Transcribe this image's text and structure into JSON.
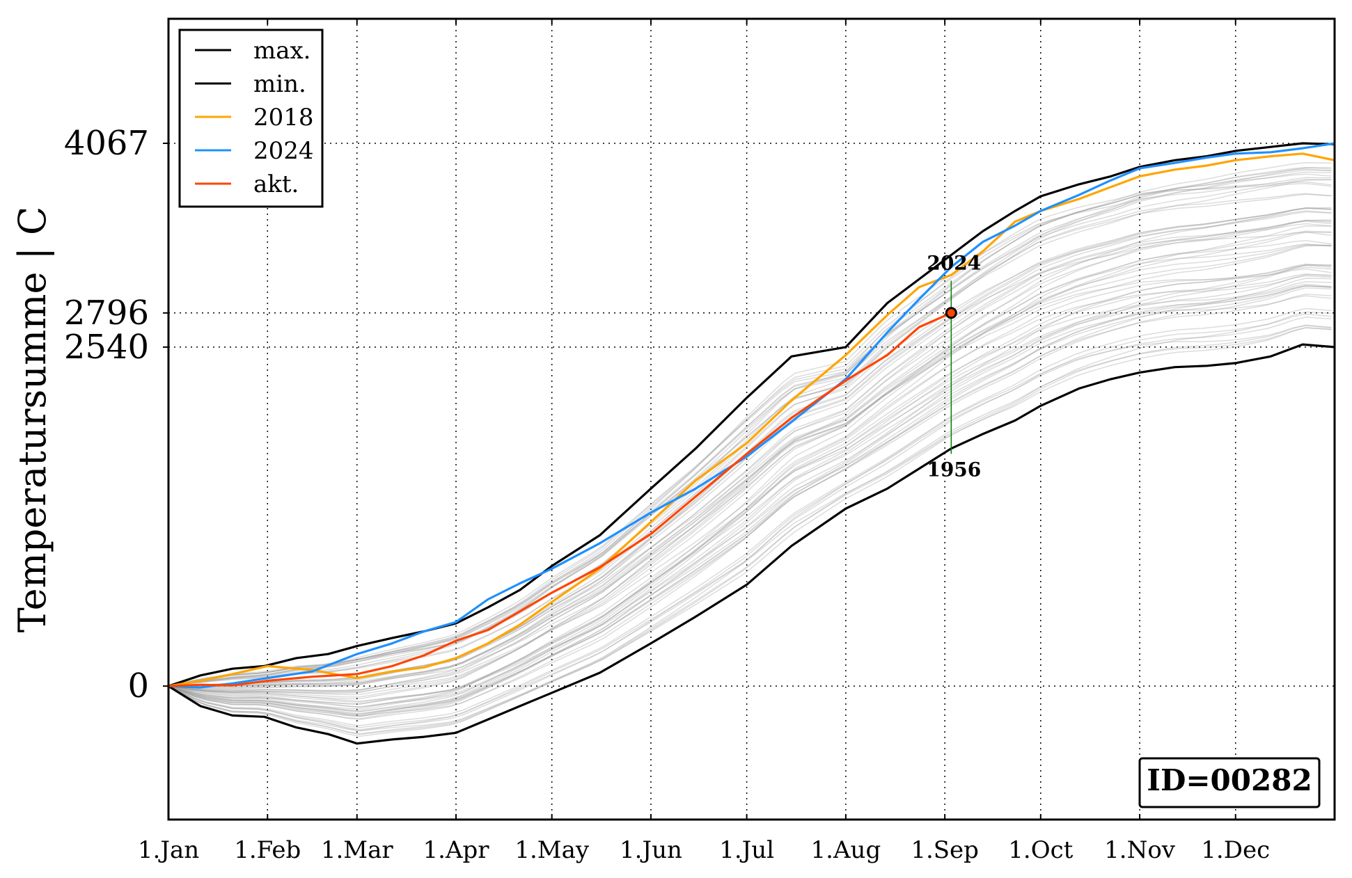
{
  "chart_data": {
    "type": "line",
    "ylabel": "Temperatursumme | C",
    "x_ticks": [
      "1.Jan",
      "1.Feb",
      "1.Mar",
      "1.Apr",
      "1.May",
      "1.Jun",
      "1.Jul",
      "1.Aug",
      "1.Sep",
      "1.Oct",
      "1.Nov",
      "1.Dec"
    ],
    "x_tick_days": [
      0,
      31,
      59,
      90,
      120,
      151,
      181,
      212,
      243,
      273,
      304,
      334
    ],
    "xlim": [
      0,
      365
    ],
    "y_ticks": [
      0,
      2540,
      2796,
      4067
    ],
    "y_tick_labels": [
      "0",
      "2540",
      "2796",
      "4067"
    ],
    "ylim": [
      -1000,
      5000
    ],
    "grid": "dotted",
    "legend": {
      "placement": "top-left",
      "entries": [
        {
          "label": "max.",
          "color": "#000000"
        },
        {
          "label": "min.",
          "color": "#000000"
        },
        {
          "label": "2018",
          "color": "#ffa500"
        },
        {
          "label": "2024",
          "color": "#1e90ff"
        },
        {
          "label": "akt.",
          "color": "#ff4500"
        }
      ]
    },
    "series": [
      {
        "name": "max.",
        "color": "#000000",
        "x": [
          0,
          10,
          20,
          30,
          40,
          50,
          59,
          70,
          80,
          90,
          100,
          110,
          120,
          135,
          151,
          165,
          181,
          195,
          212,
          225,
          235,
          245,
          255,
          265,
          273,
          285,
          295,
          304,
          315,
          325,
          334,
          345,
          355,
          365
        ],
        "y": [
          0,
          80,
          130,
          150,
          210,
          240,
          300,
          360,
          410,
          470,
          590,
          720,
          900,
          1130,
          1480,
          1780,
          2160,
          2470,
          2540,
          2870,
          3050,
          3230,
          3410,
          3560,
          3670,
          3760,
          3820,
          3890,
          3940,
          3970,
          4010,
          4040,
          4067,
          4060
        ]
      },
      {
        "name": "min.",
        "color": "#000000",
        "x": [
          0,
          10,
          20,
          30,
          40,
          50,
          59,
          70,
          80,
          90,
          100,
          110,
          120,
          135,
          151,
          165,
          181,
          195,
          212,
          225,
          235,
          245,
          255,
          265,
          273,
          285,
          295,
          304,
          315,
          325,
          334,
          345,
          355,
          365
        ],
        "y": [
          0,
          -150,
          -220,
          -230,
          -310,
          -360,
          -430,
          -400,
          -380,
          -350,
          -250,
          -150,
          -50,
          100,
          320,
          520,
          760,
          1050,
          1330,
          1480,
          1630,
          1780,
          1890,
          1990,
          2100,
          2230,
          2300,
          2350,
          2390,
          2400,
          2420,
          2470,
          2560,
          2540
        ]
      },
      {
        "name": "2018",
        "color": "#ffa500",
        "x": [
          0,
          10,
          20,
          31,
          45,
          59,
          70,
          80,
          90,
          100,
          110,
          120,
          135,
          151,
          165,
          181,
          195,
          212,
          225,
          235,
          245,
          255,
          265,
          273,
          285,
          295,
          304,
          315,
          325,
          334,
          345,
          355,
          365
        ],
        "y": [
          0,
          40,
          90,
          150,
          120,
          60,
          110,
          140,
          210,
          320,
          460,
          630,
          880,
          1230,
          1540,
          1820,
          2140,
          2480,
          2780,
          2990,
          3080,
          3260,
          3480,
          3560,
          3650,
          3740,
          3820,
          3870,
          3900,
          3940,
          3970,
          3990,
          3940
        ]
      },
      {
        "name": "2024",
        "color": "#1e90ff",
        "x": [
          0,
          10,
          20,
          31,
          45,
          59,
          70,
          80,
          90,
          100,
          110,
          120,
          135,
          151,
          165,
          181,
          195,
          212,
          225,
          235,
          245,
          255,
          265,
          273,
          285,
          295,
          304,
          315,
          325,
          334,
          345,
          355,
          365
        ],
        "y": [
          0,
          -10,
          20,
          60,
          110,
          240,
          320,
          410,
          480,
          650,
          770,
          880,
          1070,
          1300,
          1480,
          1720,
          1980,
          2300,
          2650,
          2900,
          3140,
          3330,
          3450,
          3560,
          3680,
          3790,
          3880,
          3920,
          3960,
          3990,
          4000,
          4030,
          4067
        ]
      },
      {
        "name": "akt.",
        "color": "#ff4500",
        "x": [
          0,
          10,
          20,
          31,
          45,
          59,
          70,
          80,
          90,
          100,
          110,
          120,
          135,
          151,
          165,
          181,
          195,
          212,
          225,
          235,
          245
        ],
        "y": [
          0,
          10,
          5,
          40,
          70,
          90,
          150,
          230,
          340,
          420,
          560,
          700,
          890,
          1140,
          1420,
          1740,
          2010,
          2290,
          2480,
          2690,
          2796
        ]
      }
    ],
    "annotations": [
      {
        "text": "2024",
        "x": 245,
        "y": 3080
      },
      {
        "text": "1956",
        "x": 245,
        "y": 1740
      }
    ],
    "marker": {
      "x": 245,
      "y": 2796
    }
  },
  "id_box": "ID=00282"
}
